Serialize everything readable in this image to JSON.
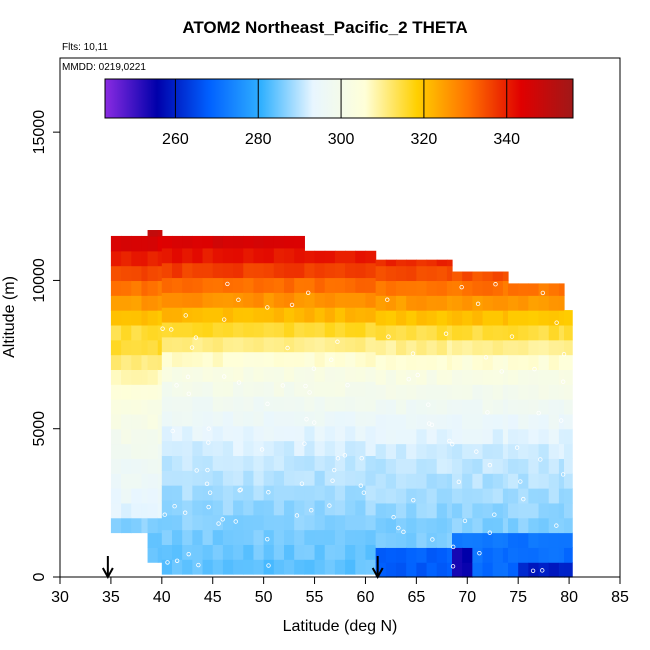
{
  "chart_data": {
    "type": "heatmap",
    "title": "ATOM2 Northeast_Pacific_2 THETA",
    "notes": [
      "Flts: 10,11",
      "MMDD: 0219,0221"
    ],
    "xlabel": "Latitude (deg N)",
    "ylabel": "Altitude (m)",
    "xlim": [
      30,
      85
    ],
    "ylim": [
      0,
      17500
    ],
    "xticks": [
      30,
      35,
      40,
      45,
      50,
      55,
      60,
      65,
      70,
      75,
      80,
      85
    ],
    "yticks": [
      0,
      5000,
      10000,
      15000
    ],
    "colorbar": {
      "range": [
        243,
        356
      ],
      "ticks": [
        260,
        280,
        300,
        320,
        340
      ],
      "colors": [
        "#8a2be2",
        "#0000aa",
        "#0060ff",
        "#30b0ff",
        "#e8f6ff",
        "#ffffd8",
        "#ffd000",
        "#ff7000",
        "#e00000",
        "#a01818"
      ]
    },
    "arrows_latitude": [
      34.7,
      61.2
    ],
    "columns": [
      {
        "lat0": 35,
        "lat1": 38.6,
        "ybase": 1500,
        "ytop": 11500
      },
      {
        "lat0": 38.6,
        "lat1": 40,
        "ybase": 500,
        "ytop": 11700
      },
      {
        "lat0": 40,
        "lat1": 54,
        "ybase": 100,
        "ytop": 11500
      },
      {
        "lat0": 54,
        "lat1": 61,
        "ybase": 100,
        "ytop": 11000
      },
      {
        "lat0": 61,
        "lat1": 68.5,
        "ybase": 0,
        "ytop": 10700
      },
      {
        "lat0": 68.5,
        "lat1": 74,
        "ybase": 0,
        "ytop": 10300
      },
      {
        "lat0": 74,
        "lat1": 79.5,
        "ybase": 0,
        "ytop": 9900
      },
      {
        "lat0": 79.5,
        "lat1": 80.3,
        "ybase": 0,
        "ytop": 9000
      }
    ],
    "profile": [
      [
        0,
        283
      ],
      [
        1000,
        285
      ],
      [
        2000,
        287
      ],
      [
        3000,
        289
      ],
      [
        4000,
        291
      ],
      [
        5000,
        294
      ],
      [
        6000,
        298
      ],
      [
        7000,
        303
      ],
      [
        8000,
        312
      ],
      [
        9000,
        323
      ],
      [
        10000,
        333
      ],
      [
        10700,
        340
      ],
      [
        11500,
        347
      ],
      [
        12000,
        353
      ]
    ]
  }
}
